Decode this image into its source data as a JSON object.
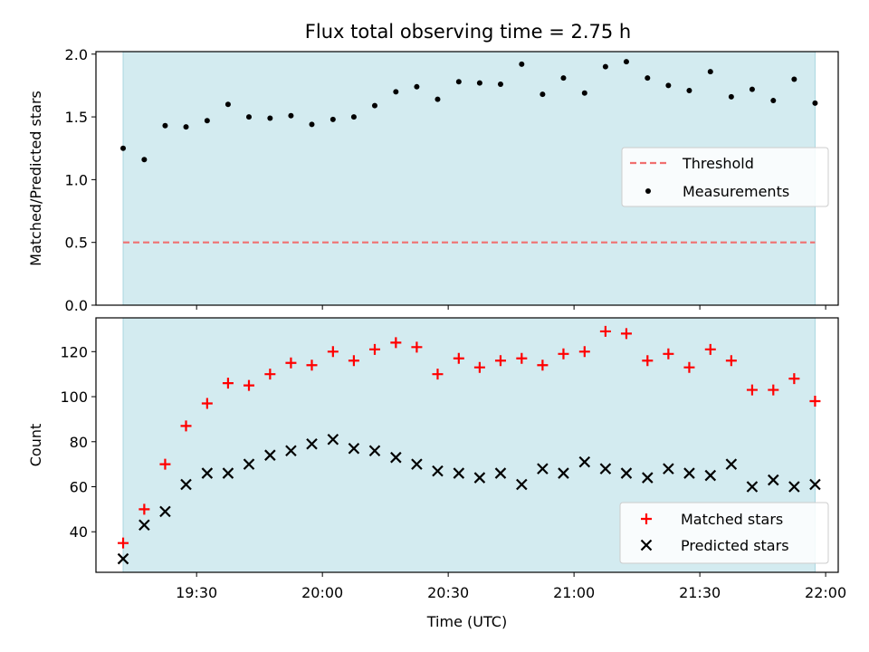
{
  "title": "Flux total observing time = 2.75 h",
  "chart_data": [
    {
      "type": "scatter",
      "name": "ratio-panel",
      "title": "Flux total observing time = 2.75 h",
      "xlabel": "",
      "ylabel": "Matched/Predicted stars",
      "xlim": [
        19.1,
        22.05
      ],
      "ylim": [
        0,
        2.02
      ],
      "yticks": [
        0,
        0.5,
        1.0,
        1.5,
        2.0
      ],
      "ytick_labels": [
        "0.0",
        "0.5",
        "1.0",
        "1.5",
        "2.0"
      ],
      "shaded_span": [
        19.208,
        21.958
      ],
      "threshold": {
        "name": "Threshold",
        "value": 0.5,
        "xmin": 19.208,
        "xmax": 21.958,
        "color": "#f07070"
      },
      "legend": {
        "position": "center-right",
        "entries": [
          "Threshold",
          "Measurements"
        ]
      },
      "series": [
        {
          "name": "Measurements",
          "marker": "dot",
          "color": "#000000",
          "x": [
            19.208,
            19.292,
            19.375,
            19.458,
            19.542,
            19.625,
            19.708,
            19.792,
            19.875,
            19.958,
            20.042,
            20.125,
            20.208,
            20.292,
            20.375,
            20.458,
            20.542,
            20.625,
            20.708,
            20.792,
            20.875,
            20.958,
            21.042,
            21.125,
            21.208,
            21.292,
            21.375,
            21.458,
            21.542,
            21.625,
            21.708,
            21.792,
            21.875,
            21.958
          ],
          "y": [
            1.25,
            1.16,
            1.43,
            1.42,
            1.47,
            1.6,
            1.5,
            1.49,
            1.51,
            1.44,
            1.48,
            1.5,
            1.59,
            1.7,
            1.74,
            1.64,
            1.78,
            1.77,
            1.76,
            1.92,
            1.68,
            1.81,
            1.69,
            1.9,
            1.94,
            1.81,
            1.75,
            1.71,
            1.86,
            1.66,
            1.72,
            1.63,
            1.8,
            1.61
          ]
        }
      ]
    },
    {
      "type": "scatter",
      "name": "count-panel",
      "title": "",
      "xlabel": "Time (UTC)",
      "ylabel": "Count",
      "xlim": [
        19.1,
        22.05
      ],
      "ylim": [
        22,
        135
      ],
      "xticks": [
        19.5,
        20.0,
        20.5,
        21.0,
        21.5,
        22.0
      ],
      "xtick_labels": [
        "19:30",
        "20:00",
        "20:30",
        "21:00",
        "21:30",
        "22:00"
      ],
      "yticks": [
        40,
        60,
        80,
        100,
        120
      ],
      "ytick_labels": [
        "40",
        "60",
        "80",
        "100",
        "120"
      ],
      "shaded_span": [
        19.208,
        21.958
      ],
      "legend": {
        "position": "bottom-right",
        "entries": [
          "Matched stars",
          "Predicted stars"
        ]
      },
      "series": [
        {
          "name": "Matched stars",
          "marker": "plus",
          "color": "#ff0000",
          "x": [
            19.208,
            19.292,
            19.375,
            19.458,
            19.542,
            19.625,
            19.708,
            19.792,
            19.875,
            19.958,
            20.042,
            20.125,
            20.208,
            20.292,
            20.375,
            20.458,
            20.542,
            20.625,
            20.708,
            20.792,
            20.875,
            20.958,
            21.042,
            21.125,
            21.208,
            21.292,
            21.375,
            21.458,
            21.542,
            21.625,
            21.708,
            21.792,
            21.875,
            21.958
          ],
          "y": [
            35,
            50,
            70,
            87,
            97,
            106,
            105,
            110,
            115,
            114,
            120,
            116,
            121,
            124,
            122,
            110,
            117,
            113,
            116,
            117,
            114,
            119,
            120,
            129,
            128,
            116,
            119,
            113,
            121,
            116,
            103,
            103,
            108,
            98
          ]
        },
        {
          "name": "Predicted stars",
          "marker": "x",
          "color": "#000000",
          "x": [
            19.208,
            19.292,
            19.375,
            19.458,
            19.542,
            19.625,
            19.708,
            19.792,
            19.875,
            19.958,
            20.042,
            20.125,
            20.208,
            20.292,
            20.375,
            20.458,
            20.542,
            20.625,
            20.708,
            20.792,
            20.875,
            20.958,
            21.042,
            21.125,
            21.208,
            21.292,
            21.375,
            21.458,
            21.542,
            21.625,
            21.708,
            21.792,
            21.875,
            21.958
          ],
          "y": [
            28,
            43,
            49,
            61,
            66,
            66,
            70,
            74,
            76,
            79,
            81,
            77,
            76,
            73,
            70,
            67,
            66,
            64,
            66,
            61,
            68,
            66,
            71,
            68,
            66,
            64,
            68,
            66,
            65,
            70,
            60,
            63,
            60,
            61
          ]
        }
      ]
    }
  ],
  "colors": {
    "span": "#d3ebf0",
    "span_edge": "#a9d6e0",
    "threshold": "#f07070",
    "matched": "#ff0000",
    "predicted": "#000000"
  }
}
